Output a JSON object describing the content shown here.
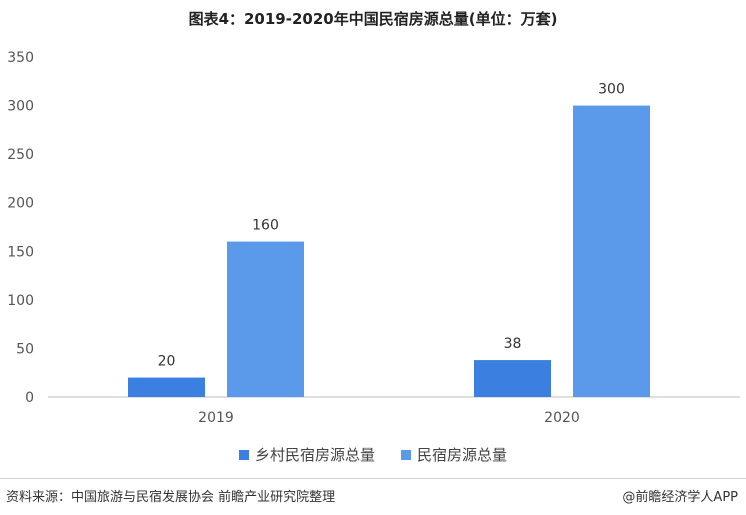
{
  "title": "图表4：2019-2020年中国民宿房源总量(单位：万套)",
  "source": "资料来源：中国旅游与民宿发展协会 前瞻产业研究院整理",
  "credit": "@前瞻经济学人APP",
  "colors": {
    "series1": "#3b7fe0",
    "series2": "#5b9aea",
    "axis": "#bfbfbf"
  },
  "chart_data": {
    "type": "bar",
    "categories": [
      "2019",
      "2020"
    ],
    "series": [
      {
        "name": "乡村民宿房源总量",
        "values": [
          20,
          38
        ]
      },
      {
        "name": "民宿房源总量",
        "values": [
          160,
          300
        ]
      }
    ],
    "ylim": [
      0,
      350
    ],
    "yticks": [
      "0",
      "50",
      "100",
      "150",
      "200",
      "250",
      "300",
      "350"
    ],
    "grid": false,
    "legend": "bottom"
  }
}
